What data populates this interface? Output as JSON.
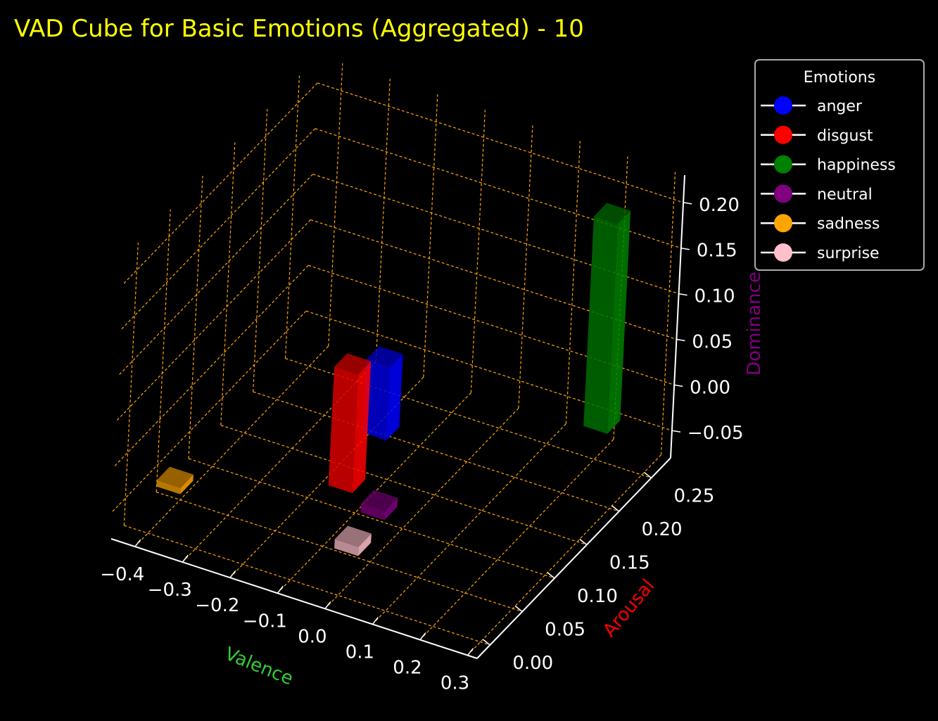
{
  "chart_data": {
    "type": "bar3d",
    "title": "VAD Cube for Basic Emotions (Aggregated) - 10",
    "title_color": "#ffff00",
    "xlabel": "Valence",
    "xlabel_color": "#33cc33",
    "ylabel": "Arousal",
    "ylabel_color": "#ff0000",
    "zlabel": "Dominance",
    "zlabel_color": "#800080",
    "grid": true,
    "grid_color": "#ffa500",
    "background": "#000000",
    "axis_color": "#ffffff",
    "xlim": [
      -0.45,
      0.32
    ],
    "ylim": [
      -0.02,
      0.28
    ],
    "zlim": [
      -0.08,
      0.23
    ],
    "x_ticks": [
      -0.4,
      -0.3,
      -0.2,
      -0.1,
      0.0,
      0.1,
      0.2,
      0.3
    ],
    "x_tick_labels": [
      "−0.4",
      "−0.3",
      "−0.2",
      "−0.1",
      "0.0",
      "0.1",
      "0.2",
      "0.3"
    ],
    "y_ticks": [
      0.0,
      0.05,
      0.1,
      0.15,
      0.2,
      0.25
    ],
    "y_tick_labels": [
      "0.00",
      "0.05",
      "0.10",
      "0.15",
      "0.20",
      "0.25"
    ],
    "z_ticks": [
      -0.05,
      0.0,
      0.05,
      0.1,
      0.15,
      0.2
    ],
    "z_tick_labels": [
      "−0.05",
      "0.00",
      "0.05",
      "0.10",
      "0.15",
      "0.20"
    ],
    "legend": {
      "title": "Emotions",
      "placement": "top-right, outside"
    },
    "series": [
      {
        "name": "anger",
        "color": "#0000ff",
        "valence": -0.08,
        "arousal": 0.12,
        "dominance_from": 0.0,
        "dominance_to": 0.08
      },
      {
        "name": "disgust",
        "color": "#ff0000",
        "valence": -0.12,
        "arousal": 0.1,
        "dominance_from": -0.05,
        "dominance_to": 0.08
      },
      {
        "name": "happiness",
        "color": "#008000",
        "valence": 0.25,
        "arousal": 0.22,
        "dominance_from": -0.01,
        "dominance_to": 0.22
      },
      {
        "name": "neutral",
        "color": "#800080",
        "valence": 0.0,
        "arousal": 0.06,
        "dominance_from": -0.03,
        "dominance_to": -0.02
      },
      {
        "name": "sadness",
        "color": "#ffa500",
        "valence": -0.4,
        "arousal": 0.04,
        "dominance_from": -0.055,
        "dominance_to": -0.048
      },
      {
        "name": "surprise",
        "color": "#ffc0cb",
        "valence": 0.0,
        "arousal": 0.02,
        "dominance_from": -0.04,
        "dominance_to": -0.03
      }
    ]
  }
}
